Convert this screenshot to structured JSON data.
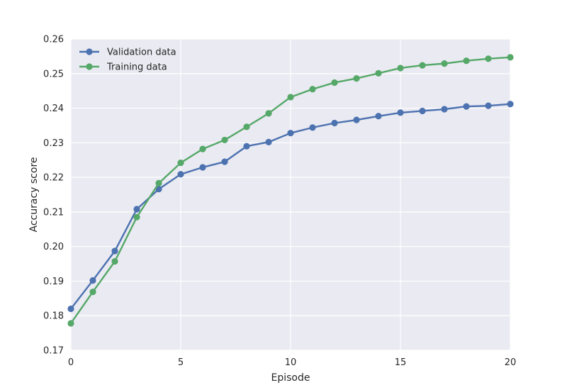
{
  "chart_data": {
    "type": "line",
    "title": "",
    "xlabel": "Episode",
    "ylabel": "Accuracy score",
    "xlim": [
      0,
      20
    ],
    "ylim": [
      0.17,
      0.26
    ],
    "xticks": [
      0,
      5,
      10,
      15,
      20
    ],
    "xtick_labels": [
      "0",
      "5",
      "10",
      "15",
      "20"
    ],
    "yticks": [
      0.17,
      0.18,
      0.19,
      0.2,
      0.21,
      0.22,
      0.23,
      0.24,
      0.25,
      0.26
    ],
    "ytick_labels": [
      "0.17",
      "0.18",
      "0.19",
      "0.20",
      "0.21",
      "0.22",
      "0.23",
      "0.24",
      "0.25",
      "0.26"
    ],
    "grid": true,
    "legend_position": "top-left",
    "x": [
      0,
      1,
      2,
      3,
      4,
      5,
      6,
      7,
      8,
      9,
      10,
      11,
      12,
      13,
      14,
      15,
      16,
      17,
      18,
      19,
      20
    ],
    "series": [
      {
        "name": "Validation data",
        "color": "#4c72b0",
        "values": [
          0.182,
          0.1902,
          0.1987,
          0.2108,
          0.2166,
          0.2209,
          0.2229,
          0.2245,
          0.229,
          0.2302,
          0.2328,
          0.2344,
          0.2357,
          0.2366,
          0.2377,
          0.2387,
          0.2392,
          0.2397,
          0.2405,
          0.2407,
          0.2412
        ]
      },
      {
        "name": "Training data",
        "color": "#55a868",
        "values": [
          0.1778,
          0.1869,
          0.1957,
          0.2085,
          0.2183,
          0.2242,
          0.2282,
          0.2308,
          0.2346,
          0.2385,
          0.2432,
          0.2455,
          0.2474,
          0.2486,
          0.2501,
          0.2516,
          0.2524,
          0.2529,
          0.2537,
          0.2543,
          0.2547
        ]
      }
    ]
  }
}
